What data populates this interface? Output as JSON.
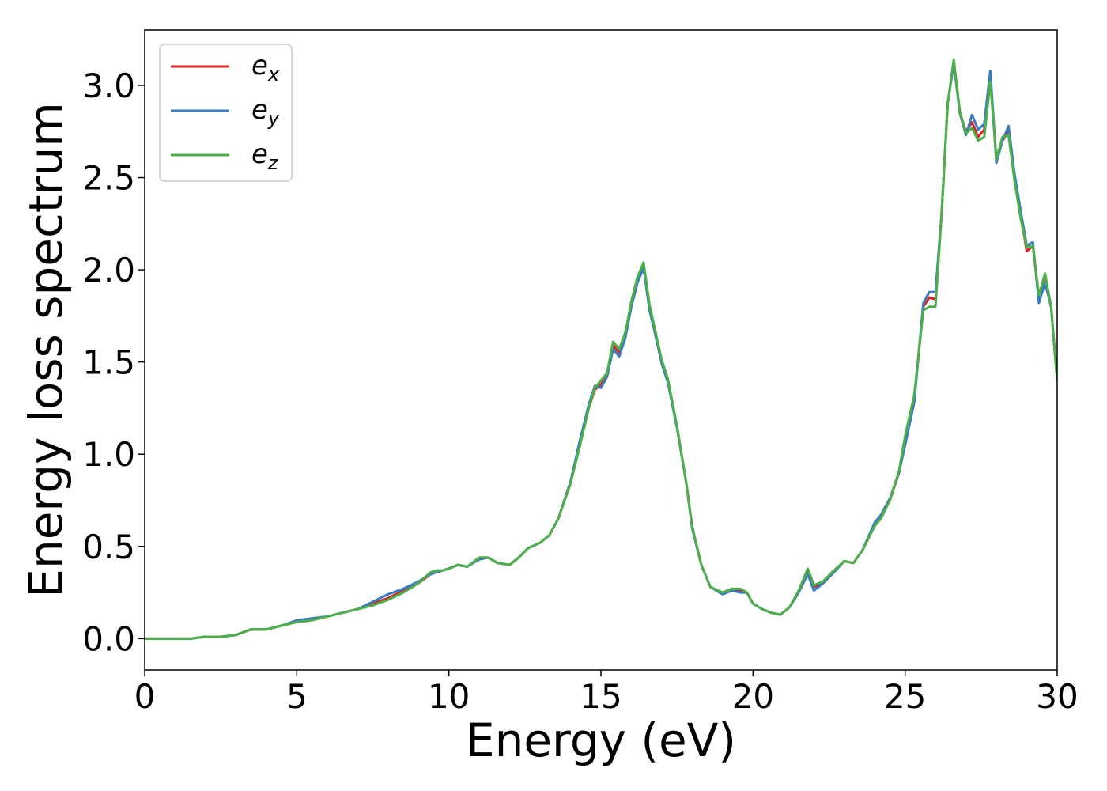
{
  "chart_data": {
    "type": "line",
    "title": "",
    "xlabel": "Energy (eV)",
    "ylabel": "Energy loss spectrum",
    "xlim": [
      0,
      30
    ],
    "ylim": [
      -0.17,
      3.3
    ],
    "xticks": [
      0,
      5,
      10,
      15,
      20,
      25,
      30
    ],
    "xtick_labels": [
      "0",
      "5",
      "10",
      "15",
      "20",
      "25",
      "30"
    ],
    "yticks": [
      0.0,
      0.5,
      1.0,
      1.5,
      2.0,
      2.5,
      3.0
    ],
    "ytick_labels": [
      "0.0",
      "0.5",
      "1.0",
      "1.5",
      "2.0",
      "2.5",
      "3.0"
    ],
    "grid": false,
    "legend": {
      "position": "top-left"
    },
    "series": [
      {
        "name": "e",
        "subscript": "x",
        "color": "#d62728",
        "x": [
          0,
          0.5,
          1,
          1.5,
          2,
          2.5,
          3,
          3.5,
          4,
          4.5,
          5,
          5.5,
          6,
          6.5,
          7,
          7.5,
          8,
          8.5,
          9,
          9.4,
          9.6,
          9.8,
          10,
          10.3,
          10.6,
          11,
          11.3,
          11.6,
          12,
          12.3,
          12.6,
          13,
          13.3,
          13.6,
          14,
          14.3,
          14.6,
          14.8,
          15,
          15.2,
          15.4,
          15.6,
          15.8,
          16,
          16.2,
          16.4,
          16.6,
          16.8,
          17,
          17.2,
          17.5,
          17.8,
          18,
          18.3,
          18.6,
          19,
          19.3,
          19.6,
          19.8,
          20,
          20.3,
          20.6,
          20.9,
          21.2,
          21.5,
          21.8,
          22,
          22.3,
          22.6,
          23,
          23.3,
          23.6,
          24,
          24.2,
          24.5,
          24.8,
          25,
          25.3,
          25.6,
          25.8,
          26,
          26.2,
          26.4,
          26.6,
          26.8,
          27,
          27.2,
          27.4,
          27.6,
          27.8,
          28,
          28.2,
          28.4,
          28.6,
          28.8,
          29,
          29.2,
          29.4,
          29.6,
          29.8,
          30
        ],
        "y": [
          0.0,
          0.0,
          0.0,
          0.0,
          0.01,
          0.01,
          0.02,
          0.05,
          0.05,
          0.07,
          0.09,
          0.1,
          0.12,
          0.14,
          0.16,
          0.19,
          0.22,
          0.26,
          0.3,
          0.35,
          0.36,
          0.37,
          0.38,
          0.4,
          0.39,
          0.43,
          0.44,
          0.41,
          0.4,
          0.44,
          0.49,
          0.52,
          0.56,
          0.65,
          0.85,
          1.05,
          1.25,
          1.35,
          1.38,
          1.42,
          1.59,
          1.55,
          1.65,
          1.82,
          1.95,
          2.03,
          1.8,
          1.65,
          1.5,
          1.4,
          1.15,
          0.85,
          0.6,
          0.4,
          0.28,
          0.25,
          0.27,
          0.26,
          0.25,
          0.19,
          0.16,
          0.14,
          0.13,
          0.17,
          0.25,
          0.36,
          0.28,
          0.3,
          0.35,
          0.42,
          0.41,
          0.48,
          0.62,
          0.66,
          0.75,
          0.9,
          1.08,
          1.3,
          1.8,
          1.85,
          1.84,
          2.3,
          2.9,
          3.13,
          2.85,
          2.75,
          2.8,
          2.72,
          2.76,
          3.05,
          2.6,
          2.7,
          2.75,
          2.5,
          2.3,
          2.1,
          2.13,
          1.85,
          1.95,
          1.8,
          1.4
        ]
      },
      {
        "name": "e",
        "subscript": "y",
        "color": "#3b7bbf",
        "x": [
          0,
          0.5,
          1,
          1.5,
          2,
          2.5,
          3,
          3.5,
          4,
          4.5,
          5,
          5.5,
          6,
          6.5,
          7,
          7.5,
          8,
          8.5,
          9,
          9.4,
          9.6,
          9.8,
          10,
          10.3,
          10.6,
          11,
          11.3,
          11.6,
          12,
          12.3,
          12.6,
          13,
          13.3,
          13.6,
          14,
          14.3,
          14.6,
          14.8,
          15,
          15.2,
          15.4,
          15.6,
          15.8,
          16,
          16.2,
          16.4,
          16.6,
          16.8,
          17,
          17.2,
          17.5,
          17.8,
          18,
          18.3,
          18.6,
          19,
          19.3,
          19.6,
          19.8,
          20,
          20.3,
          20.6,
          20.9,
          21.2,
          21.5,
          21.8,
          22,
          22.3,
          22.6,
          23,
          23.3,
          23.6,
          24,
          24.2,
          24.5,
          24.8,
          25,
          25.3,
          25.6,
          25.8,
          26,
          26.2,
          26.4,
          26.6,
          26.8,
          27,
          27.2,
          27.4,
          27.6,
          27.8,
          28,
          28.2,
          28.4,
          28.6,
          28.8,
          29,
          29.2,
          29.4,
          29.6,
          29.8,
          30
        ],
        "y": [
          0.0,
          0.0,
          0.0,
          0.0,
          0.01,
          0.01,
          0.02,
          0.05,
          0.05,
          0.07,
          0.1,
          0.11,
          0.12,
          0.14,
          0.16,
          0.2,
          0.24,
          0.27,
          0.31,
          0.35,
          0.36,
          0.37,
          0.38,
          0.4,
          0.39,
          0.43,
          0.44,
          0.41,
          0.4,
          0.44,
          0.49,
          0.52,
          0.56,
          0.65,
          0.85,
          1.07,
          1.27,
          1.37,
          1.36,
          1.42,
          1.57,
          1.53,
          1.63,
          1.8,
          1.93,
          2.01,
          1.78,
          1.64,
          1.49,
          1.39,
          1.14,
          0.85,
          0.6,
          0.4,
          0.28,
          0.24,
          0.26,
          0.25,
          0.25,
          0.19,
          0.16,
          0.14,
          0.13,
          0.17,
          0.25,
          0.35,
          0.26,
          0.3,
          0.35,
          0.42,
          0.41,
          0.48,
          0.63,
          0.67,
          0.76,
          0.9,
          1.05,
          1.28,
          1.82,
          1.88,
          1.88,
          2.3,
          2.9,
          3.12,
          2.85,
          2.73,
          2.84,
          2.76,
          2.79,
          3.08,
          2.58,
          2.7,
          2.78,
          2.52,
          2.32,
          2.13,
          2.15,
          1.82,
          1.93,
          1.8,
          1.4
        ]
      },
      {
        "name": "e",
        "subscript": "z",
        "color": "#4daf4a",
        "x": [
          0,
          0.5,
          1,
          1.5,
          2,
          2.5,
          3,
          3.5,
          4,
          4.5,
          5,
          5.5,
          6,
          6.5,
          7,
          7.5,
          8,
          8.5,
          9,
          9.4,
          9.6,
          9.8,
          10,
          10.3,
          10.6,
          11,
          11.3,
          11.6,
          12,
          12.3,
          12.6,
          13,
          13.3,
          13.6,
          14,
          14.3,
          14.6,
          14.8,
          15,
          15.2,
          15.4,
          15.6,
          15.8,
          16,
          16.2,
          16.4,
          16.6,
          16.8,
          17,
          17.2,
          17.5,
          17.8,
          18,
          18.3,
          18.6,
          19,
          19.3,
          19.6,
          19.8,
          20,
          20.3,
          20.6,
          20.9,
          21.2,
          21.5,
          21.8,
          22,
          22.3,
          22.6,
          23,
          23.3,
          23.6,
          24,
          24.2,
          24.5,
          24.8,
          25,
          25.3,
          25.6,
          25.8,
          26,
          26.2,
          26.4,
          26.6,
          26.8,
          27,
          27.2,
          27.4,
          27.6,
          27.8,
          28,
          28.2,
          28.4,
          28.6,
          28.8,
          29,
          29.2,
          29.4,
          29.6,
          29.8,
          30
        ],
        "y": [
          0.0,
          0.0,
          0.0,
          0.0,
          0.01,
          0.01,
          0.02,
          0.05,
          0.05,
          0.07,
          0.09,
          0.1,
          0.12,
          0.14,
          0.16,
          0.18,
          0.21,
          0.25,
          0.3,
          0.36,
          0.37,
          0.37,
          0.38,
          0.4,
          0.39,
          0.44,
          0.44,
          0.41,
          0.4,
          0.44,
          0.49,
          0.52,
          0.56,
          0.65,
          0.84,
          1.04,
          1.25,
          1.36,
          1.4,
          1.44,
          1.61,
          1.57,
          1.66,
          1.83,
          1.96,
          2.04,
          1.81,
          1.66,
          1.51,
          1.41,
          1.15,
          0.85,
          0.61,
          0.4,
          0.28,
          0.25,
          0.27,
          0.27,
          0.25,
          0.19,
          0.16,
          0.14,
          0.13,
          0.17,
          0.26,
          0.38,
          0.29,
          0.31,
          0.36,
          0.42,
          0.41,
          0.48,
          0.61,
          0.65,
          0.75,
          0.91,
          1.1,
          1.32,
          1.78,
          1.8,
          1.8,
          2.3,
          2.9,
          3.14,
          2.86,
          2.74,
          2.77,
          2.7,
          2.72,
          3.02,
          2.6,
          2.72,
          2.73,
          2.48,
          2.28,
          2.12,
          2.13,
          1.86,
          1.98,
          1.8,
          1.4
        ]
      }
    ]
  }
}
